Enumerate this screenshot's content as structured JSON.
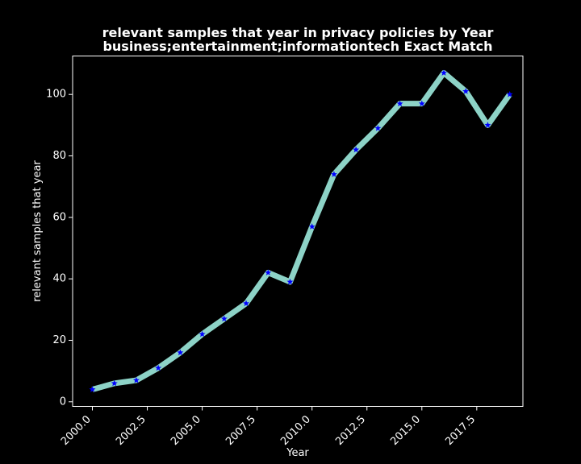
{
  "chart_data": {
    "type": "line",
    "title": "relevant samples that year in privacy policies by Year",
    "subtitle": "business;entertainment;informationtech Exact Match",
    "xlabel": "Year",
    "ylabel": "relevant samples that year",
    "xlim": [
      1999.1,
      2019.6
    ],
    "ylim": [
      -1.5,
      112.5
    ],
    "xticks": [
      2000.0,
      2002.5,
      2005.0,
      2007.5,
      2010.0,
      2012.5,
      2015.0,
      2017.5
    ],
    "xtick_labels": [
      "2000.0",
      "2002.5",
      "2005.0",
      "2007.5",
      "2010.0",
      "2012.5",
      "2015.0",
      "2017.5"
    ],
    "yticks": [
      0,
      20,
      40,
      60,
      80,
      100
    ],
    "ytick_labels": [
      "0",
      "20",
      "40",
      "60",
      "80",
      "100"
    ],
    "grid": false,
    "legend": "none",
    "series": [
      {
        "x": [
          2000,
          2001,
          2002,
          2003,
          2004,
          2005,
          2006,
          2007,
          2008,
          2009,
          2010,
          2011,
          2012,
          2013,
          2014,
          2015,
          2016,
          2017,
          2018,
          2019
        ],
        "values": [
          4,
          6,
          7,
          11,
          16,
          22,
          27,
          32,
          42,
          39,
          57,
          74,
          82,
          89,
          97,
          97,
          107,
          101,
          90,
          100
        ],
        "line_color": "#8dd3c7",
        "marker_color": "#0000ff",
        "marker": "star"
      }
    ],
    "background_color": "#000000",
    "axis_color": "#ffffff"
  }
}
